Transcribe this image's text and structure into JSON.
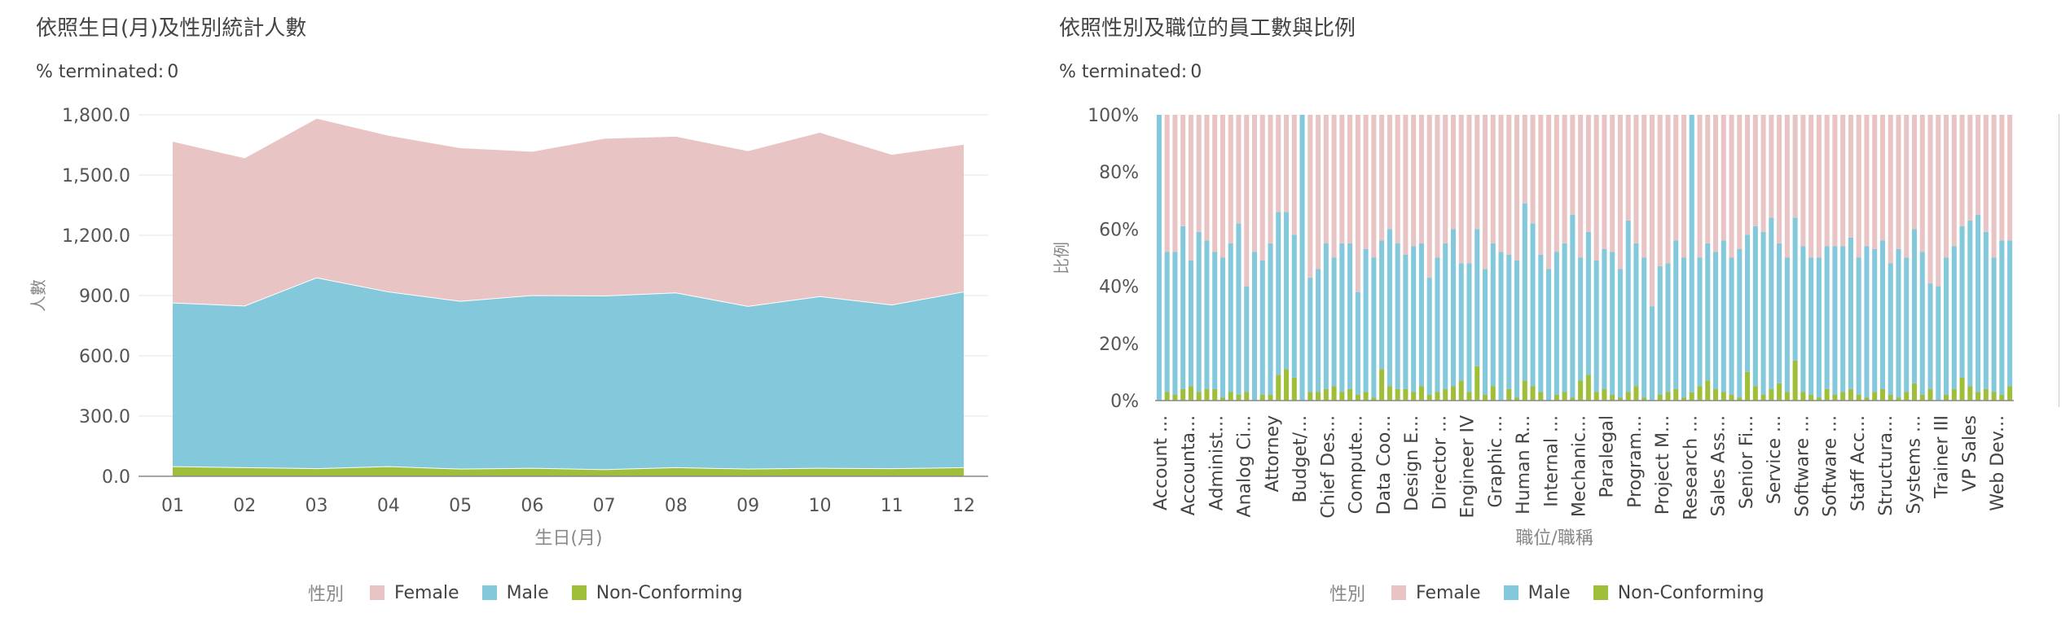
{
  "colors": {
    "female": "#e9c4c4",
    "male": "#83c9db",
    "nonconforming": "#9fbf3a",
    "axis": "#888888",
    "grid": "#e3e3e3"
  },
  "left": {
    "title": "依照生日(月)及性別統計人數",
    "filter_label": "% terminated:",
    "filter_value": "0",
    "legend_title": "性別",
    "legend_items": [
      "Female",
      "Male",
      "Non-Conforming"
    ]
  },
  "right": {
    "title": "依照性別及職位的員工數與比例",
    "filter_label": "% terminated:",
    "filter_value": "0",
    "legend_title": "性別",
    "legend_items": [
      "Female",
      "Male",
      "Non-Conforming"
    ]
  },
  "chart_data": [
    {
      "type": "area",
      "stacked": true,
      "xlabel": "生日(月)",
      "ylabel": "人數",
      "categories": [
        "01",
        "02",
        "03",
        "04",
        "05",
        "06",
        "07",
        "08",
        "09",
        "10",
        "11",
        "12"
      ],
      "ylim": [
        0,
        1800
      ],
      "yticks": [
        "0.0",
        "300.0",
        "600.0",
        "900.0",
        "1,200.0",
        "1,500.0",
        "1,800.0"
      ],
      "grid": true,
      "legend_position": "bottom",
      "series": [
        {
          "name": "Non-Conforming",
          "values": [
            50,
            45,
            40,
            50,
            38,
            42,
            35,
            45,
            38,
            42,
            40,
            45
          ]
        },
        {
          "name": "Male",
          "values": [
            815,
            805,
            950,
            870,
            835,
            860,
            865,
            870,
            810,
            855,
            815,
            875
          ]
        },
        {
          "name": "Female",
          "values": [
            805,
            738,
            795,
            780,
            765,
            718,
            785,
            780,
            775,
            818,
            750,
            735
          ]
        }
      ]
    },
    {
      "type": "bar",
      "stacked": true,
      "normalized": true,
      "xlabel": "職位/職稱",
      "ylabel": "比例",
      "ylim": [
        0,
        100
      ],
      "yticks": [
        "0%",
        "20%",
        "40%",
        "60%",
        "80%",
        "100%"
      ],
      "legend_position": "bottom",
      "bar_count": 108,
      "x_tick_labels": [
        "Account ...",
        "Accounta...",
        "Administ...",
        "Analog Ci...",
        "Attorney",
        "Budget/...",
        "Chief Des...",
        "Compute...",
        "Data Coo...",
        "Design E...",
        "Director ...",
        "Engineer IV",
        "Graphic ...",
        "Human R...",
        "Internal ...",
        "Mechanic...",
        "Paralegal",
        "Program...",
        "Project M...",
        "Research ...",
        "Sales Ass...",
        "Senior Fi...",
        "Service ...",
        "Software ...",
        "Software ...",
        "Staff Acc...",
        "Structura...",
        "Systems ...",
        "Trainer III",
        "VP Sales",
        "Web Dev..."
      ],
      "series": [
        {
          "name": "Non-Conforming",
          "values": [
            0,
            3,
            2,
            4,
            5,
            3,
            4,
            4,
            1,
            3,
            2,
            3,
            0,
            2,
            2,
            9,
            11,
            8,
            0,
            3,
            3,
            4,
            5,
            3,
            4,
            2,
            3,
            1,
            11,
            5,
            4,
            4,
            3,
            5,
            2,
            3,
            4,
            5,
            7,
            3,
            12,
            2,
            5,
            0,
            4,
            1,
            7,
            5,
            3,
            0,
            2,
            3,
            1,
            7,
            9,
            3,
            4,
            2,
            1,
            3,
            5,
            1,
            0,
            2,
            3,
            4,
            1,
            3,
            5,
            7,
            4,
            3,
            2,
            1,
            10,
            5,
            2,
            4,
            6,
            3,
            14,
            3,
            2,
            1,
            4,
            2,
            3,
            4,
            2,
            1,
            3,
            4,
            2,
            1,
            3,
            6,
            2,
            4,
            0,
            2,
            4,
            8,
            5,
            3,
            4,
            3,
            2,
            5
          ]
        },
        {
          "name": "Male",
          "values": [
            100,
            49,
            50,
            57,
            44,
            56,
            52,
            48,
            49,
            52,
            60,
            37,
            52,
            47,
            53,
            57,
            55,
            50,
            100,
            40,
            43,
            51,
            45,
            52,
            51,
            36,
            50,
            49,
            45,
            55,
            51,
            47,
            51,
            50,
            41,
            47,
            51,
            55,
            41,
            45,
            48,
            44,
            50,
            52,
            47,
            48,
            62,
            57,
            48,
            46,
            50,
            52,
            64,
            43,
            50,
            46,
            49,
            50,
            45,
            60,
            50,
            49,
            33,
            45,
            45,
            52,
            49,
            100,
            45,
            48,
            48,
            53,
            48,
            52,
            48,
            56,
            57,
            60,
            49,
            47,
            50,
            51,
            48,
            49,
            50,
            52,
            51,
            53,
            48,
            53,
            50,
            52,
            46,
            52,
            47,
            54,
            50,
            37,
            40,
            48,
            50,
            53,
            58,
            62,
            55,
            47,
            54,
            51
          ]
        },
        {
          "name": "Female",
          "values": [
            0,
            48,
            48,
            39,
            51,
            41,
            44,
            48,
            50,
            45,
            38,
            60,
            48,
            51,
            45,
            34,
            34,
            42,
            0,
            57,
            54,
            45,
            50,
            45,
            45,
            62,
            47,
            50,
            44,
            40,
            45,
            49,
            46,
            45,
            57,
            50,
            45,
            40,
            52,
            52,
            40,
            54,
            45,
            48,
            49,
            51,
            31,
            38,
            49,
            54,
            48,
            45,
            35,
            50,
            41,
            51,
            47,
            48,
            54,
            37,
            45,
            50,
            67,
            53,
            52,
            44,
            50,
            0,
            50,
            45,
            48,
            44,
            50,
            47,
            42,
            39,
            41,
            36,
            45,
            50,
            36,
            46,
            50,
            50,
            46,
            46,
            46,
            43,
            50,
            46,
            47,
            44,
            52,
            47,
            50,
            40,
            48,
            59,
            60,
            50,
            46,
            39,
            37,
            35,
            41,
            50,
            44,
            44
          ]
        }
      ]
    }
  ]
}
